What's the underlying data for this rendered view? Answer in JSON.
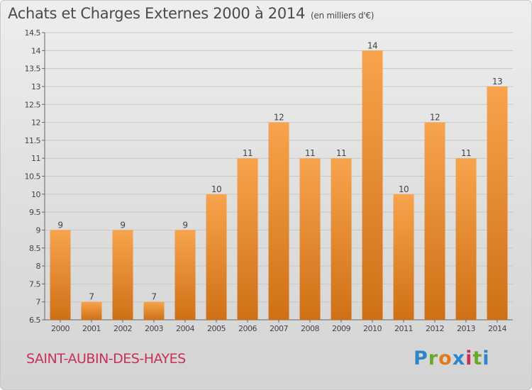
{
  "header": {
    "title": "Achats et Charges Externes 2000 à 2014",
    "unit": "(en milliers d'€)"
  },
  "footer": {
    "commune": "SAINT-AUBIN-DES-HAYES",
    "logo_text": "Proxiti",
    "logo_colors": [
      "#2e86c8",
      "#6aaa2b",
      "#e07b1b",
      "#2e86c8",
      "#c8305a",
      "#6aaa2b",
      "#2e86c8"
    ]
  },
  "colors": {
    "bar_light": "#f7a44c",
    "bar_dark": "#cf7016",
    "grid": "#c8c8c8",
    "text": "#444444"
  },
  "chart_data": {
    "type": "bar",
    "title": "Achats et Charges Externes 2000 à 2014",
    "categories": [
      "2000",
      "2001",
      "2002",
      "2003",
      "2004",
      "2005",
      "2006",
      "2007",
      "2008",
      "2009",
      "2010",
      "2011",
      "2012",
      "2013",
      "2014"
    ],
    "values": [
      9,
      7,
      9,
      7,
      9,
      10,
      11,
      12,
      11,
      11,
      14,
      10,
      12,
      11,
      13
    ],
    "data_labels": [
      "9",
      "7",
      "9",
      "7",
      "9",
      "10",
      "11",
      "12",
      "11",
      "11",
      "14",
      "10",
      "12",
      "11",
      "13"
    ],
    "ylim": [
      6.5,
      14.5
    ],
    "yticks": [
      "6.5",
      "7",
      "7.5",
      "8",
      "8.5",
      "9",
      "9.5",
      "10",
      "10.5",
      "11",
      "11.5",
      "12",
      "12.5",
      "13",
      "13.5",
      "14",
      "14.5"
    ],
    "grid": true,
    "xlabel": "",
    "ylabel": ""
  }
}
